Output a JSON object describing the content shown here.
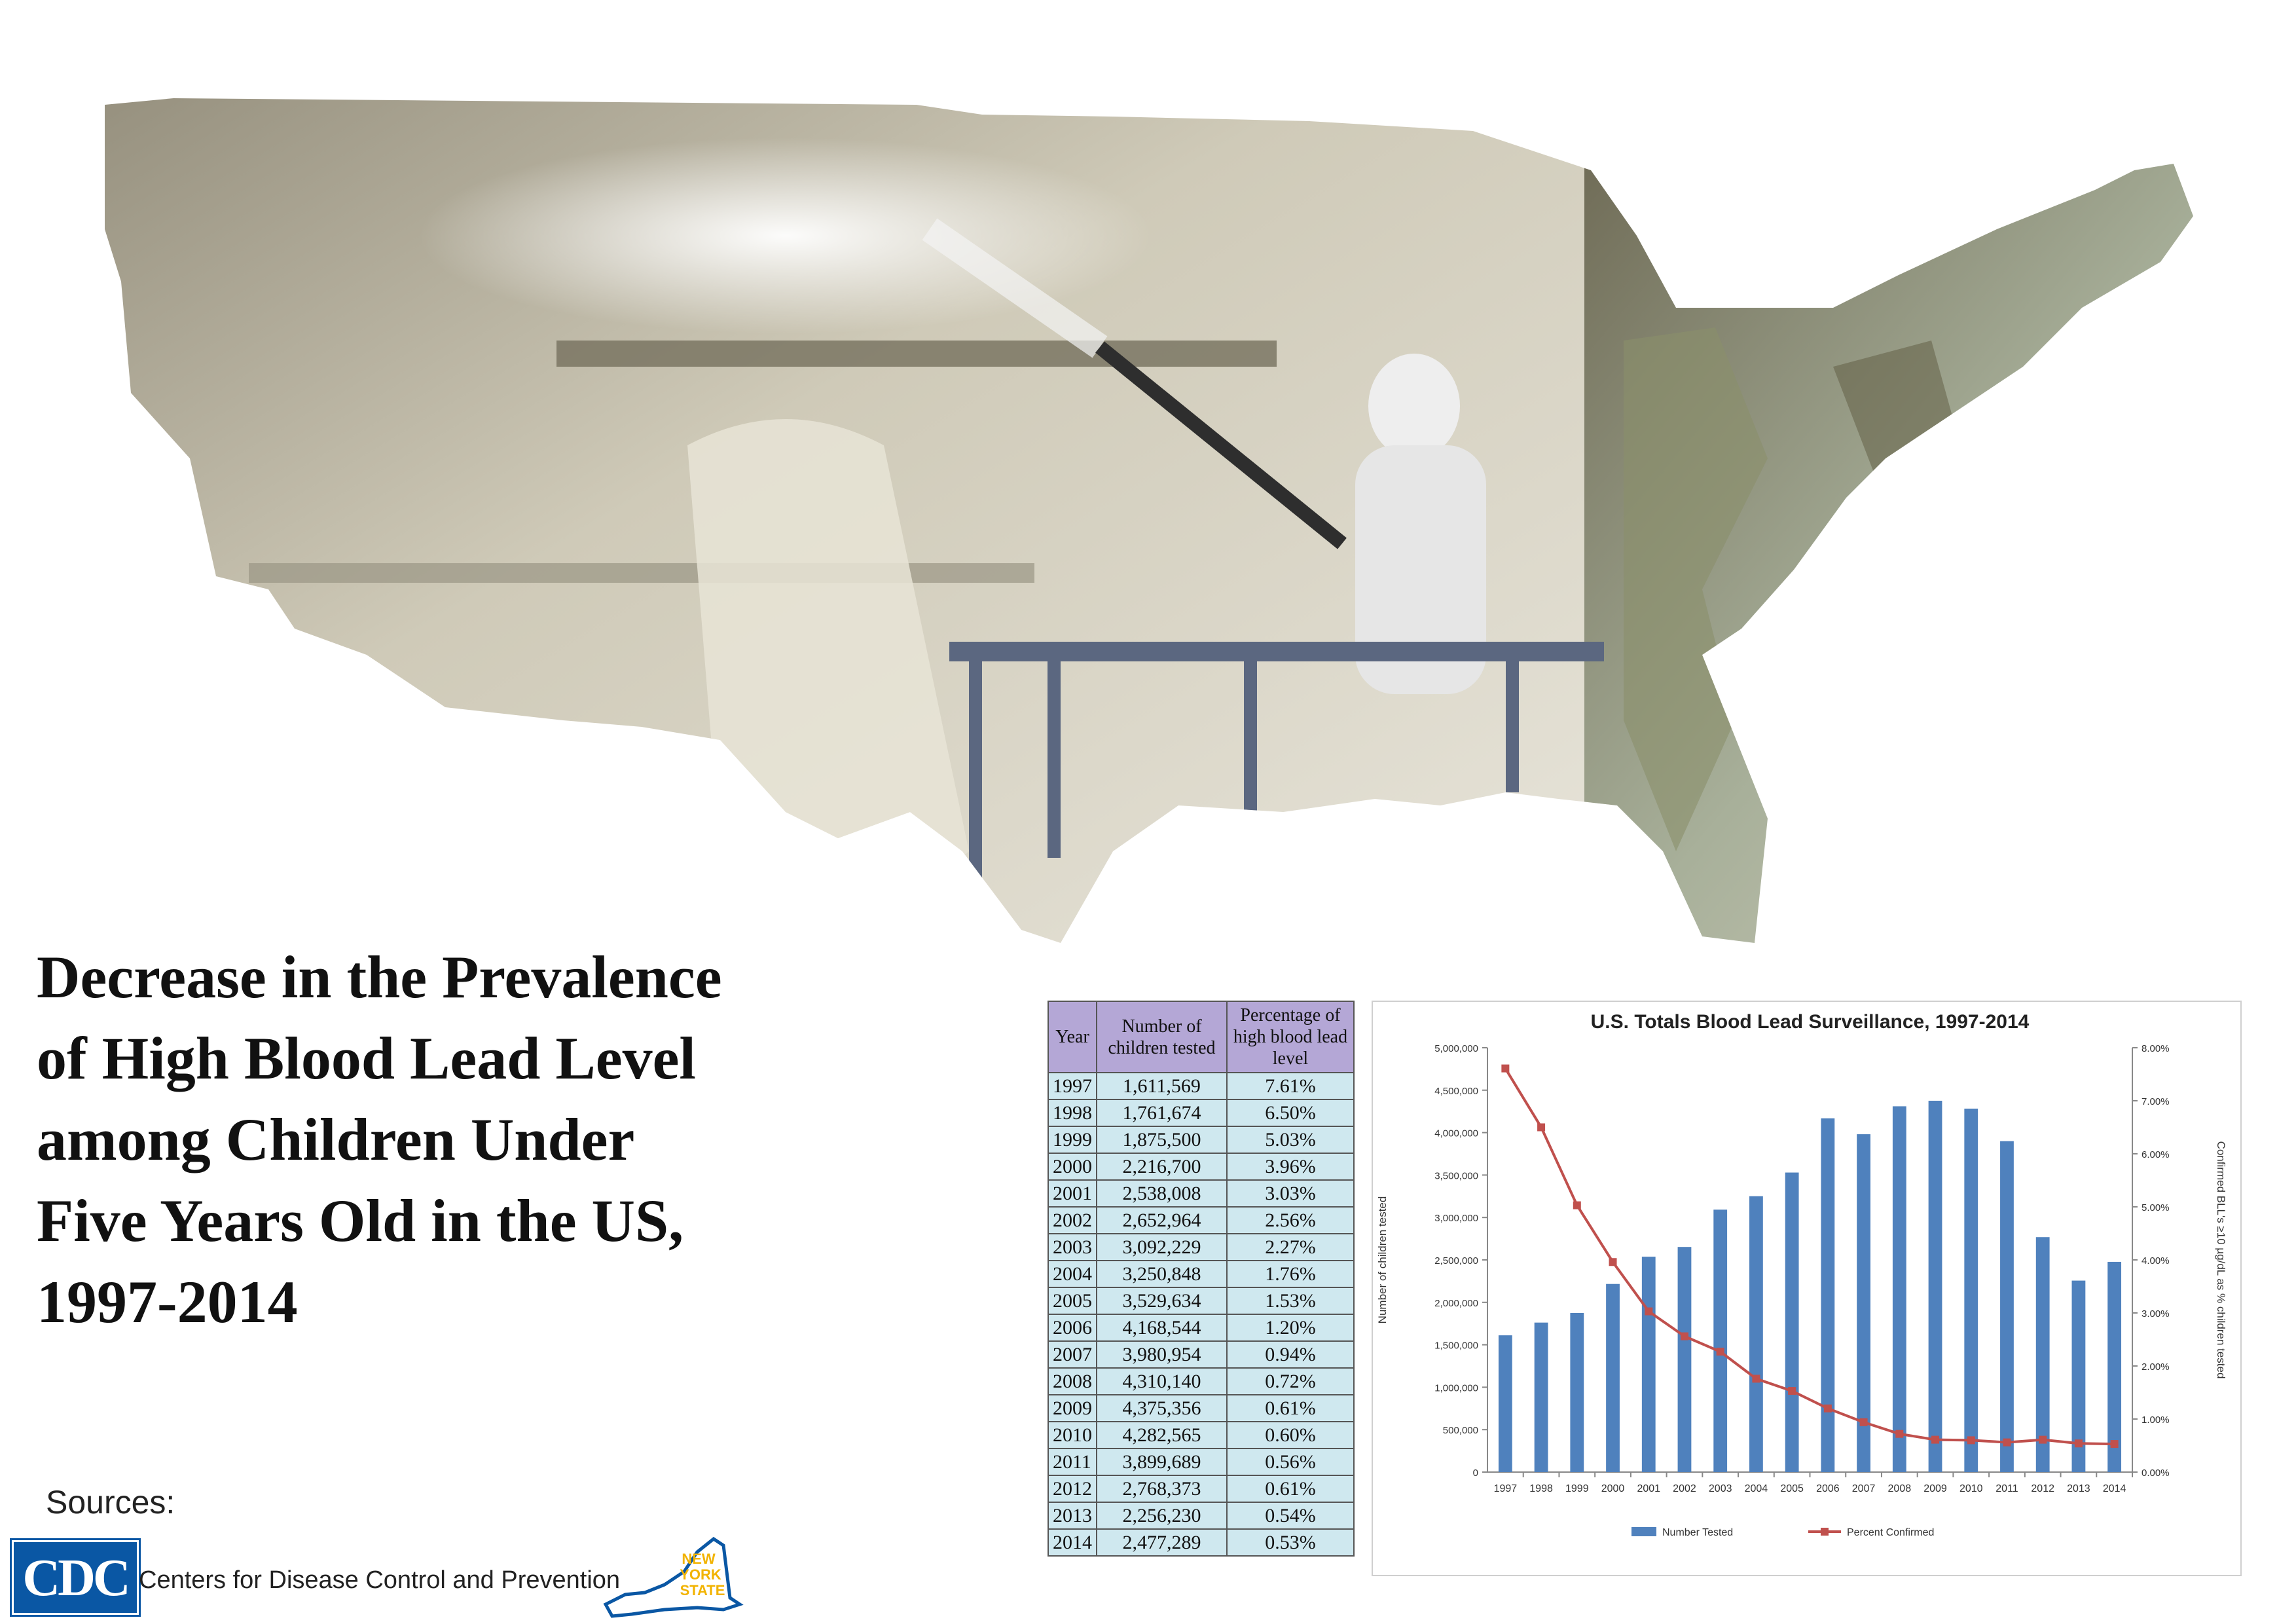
{
  "title_lines": [
    "Decrease in the Prevalence",
    "of High Blood Lead Level",
    "among Children Under",
    "Five Years Old in the US,",
    "1997-2014"
  ],
  "sources_label": "Sources:",
  "cdc": {
    "logo_text": "CDC",
    "name": "Centers for Disease Control and Prevention"
  },
  "ny_logo": {
    "line1": "NEW",
    "line2": "YORK",
    "line3": "STATE"
  },
  "colors": {
    "bars": "#4f81bd",
    "line": "#c0504d",
    "table_header": "#b4a7d6",
    "table_cell": "#cfe8ef",
    "ny_gold": "#f2b300"
  },
  "table": {
    "headers": [
      "Year",
      "Number of children tested",
      "Percentage of high blood lead level"
    ],
    "rows": [
      [
        "1997",
        "1,611,569",
        "7.61%"
      ],
      [
        "1998",
        "1,761,674",
        "6.50%"
      ],
      [
        "1999",
        "1,875,500",
        "5.03%"
      ],
      [
        "2000",
        "2,216,700",
        "3.96%"
      ],
      [
        "2001",
        "2,538,008",
        "3.03%"
      ],
      [
        "2002",
        "2,652,964",
        "2.56%"
      ],
      [
        "2003",
        "3,092,229",
        "2.27%"
      ],
      [
        "2004",
        "3,250,848",
        "1.76%"
      ],
      [
        "2005",
        "3,529,634",
        "1.53%"
      ],
      [
        "2006",
        "4,168,544",
        "1.20%"
      ],
      [
        "2007",
        "3,980,954",
        "0.94%"
      ],
      [
        "2008",
        "4,310,140",
        "0.72%"
      ],
      [
        "2009",
        "4,375,356",
        "0.61%"
      ],
      [
        "2010",
        "4,282,565",
        "0.60%"
      ],
      [
        "2011",
        "3,899,689",
        "0.56%"
      ],
      [
        "2012",
        "2,768,373",
        "0.61%"
      ],
      [
        "2013",
        "2,256,230",
        "0.54%"
      ],
      [
        "2014",
        "2,477,289",
        "0.53%"
      ]
    ]
  },
  "chart_data": {
    "type": "bar",
    "title": "U.S. Totals Blood Lead Surveillance, 1997-2014",
    "categories": [
      "1997",
      "1998",
      "1999",
      "2000",
      "2001",
      "2002",
      "2003",
      "2004",
      "2005",
      "2006",
      "2007",
      "2008",
      "2009",
      "2010",
      "2011",
      "2012",
      "2013",
      "2014"
    ],
    "series": [
      {
        "name": "Number Tested",
        "type": "bar",
        "axis": "left",
        "values": [
          1611569,
          1761674,
          1875500,
          2216700,
          2538008,
          2652964,
          3092229,
          3250848,
          3529634,
          4168544,
          3980954,
          4310140,
          4375356,
          4282565,
          3899689,
          2768373,
          2256230,
          2477289
        ]
      },
      {
        "name": "Percent Confirmed",
        "type": "line",
        "axis": "right",
        "values": [
          7.61,
          6.5,
          5.03,
          3.96,
          3.03,
          2.56,
          2.27,
          1.76,
          1.53,
          1.2,
          0.94,
          0.72,
          0.61,
          0.6,
          0.56,
          0.61,
          0.54,
          0.53
        ]
      }
    ],
    "ylabel": "Number of children tested",
    "y2label": "Confirmed BLL's ≥10 µg/dL as % children tested",
    "ylim": [
      0,
      5000000
    ],
    "y2lim": [
      0,
      8
    ],
    "yticks": [
      "0",
      "500,000",
      "1,000,000",
      "1,500,000",
      "2,000,000",
      "2,500,000",
      "3,000,000",
      "3,500,000",
      "4,000,000",
      "4,500,000",
      "5,000,000"
    ],
    "y2ticks": [
      "0.00%",
      "1.00%",
      "2.00%",
      "3.00%",
      "4.00%",
      "5.00%",
      "6.00%",
      "7.00%",
      "8.00%"
    ],
    "legend": [
      "Number Tested",
      "Percent Confirmed"
    ],
    "legend_position": "bottom",
    "grid": false
  }
}
